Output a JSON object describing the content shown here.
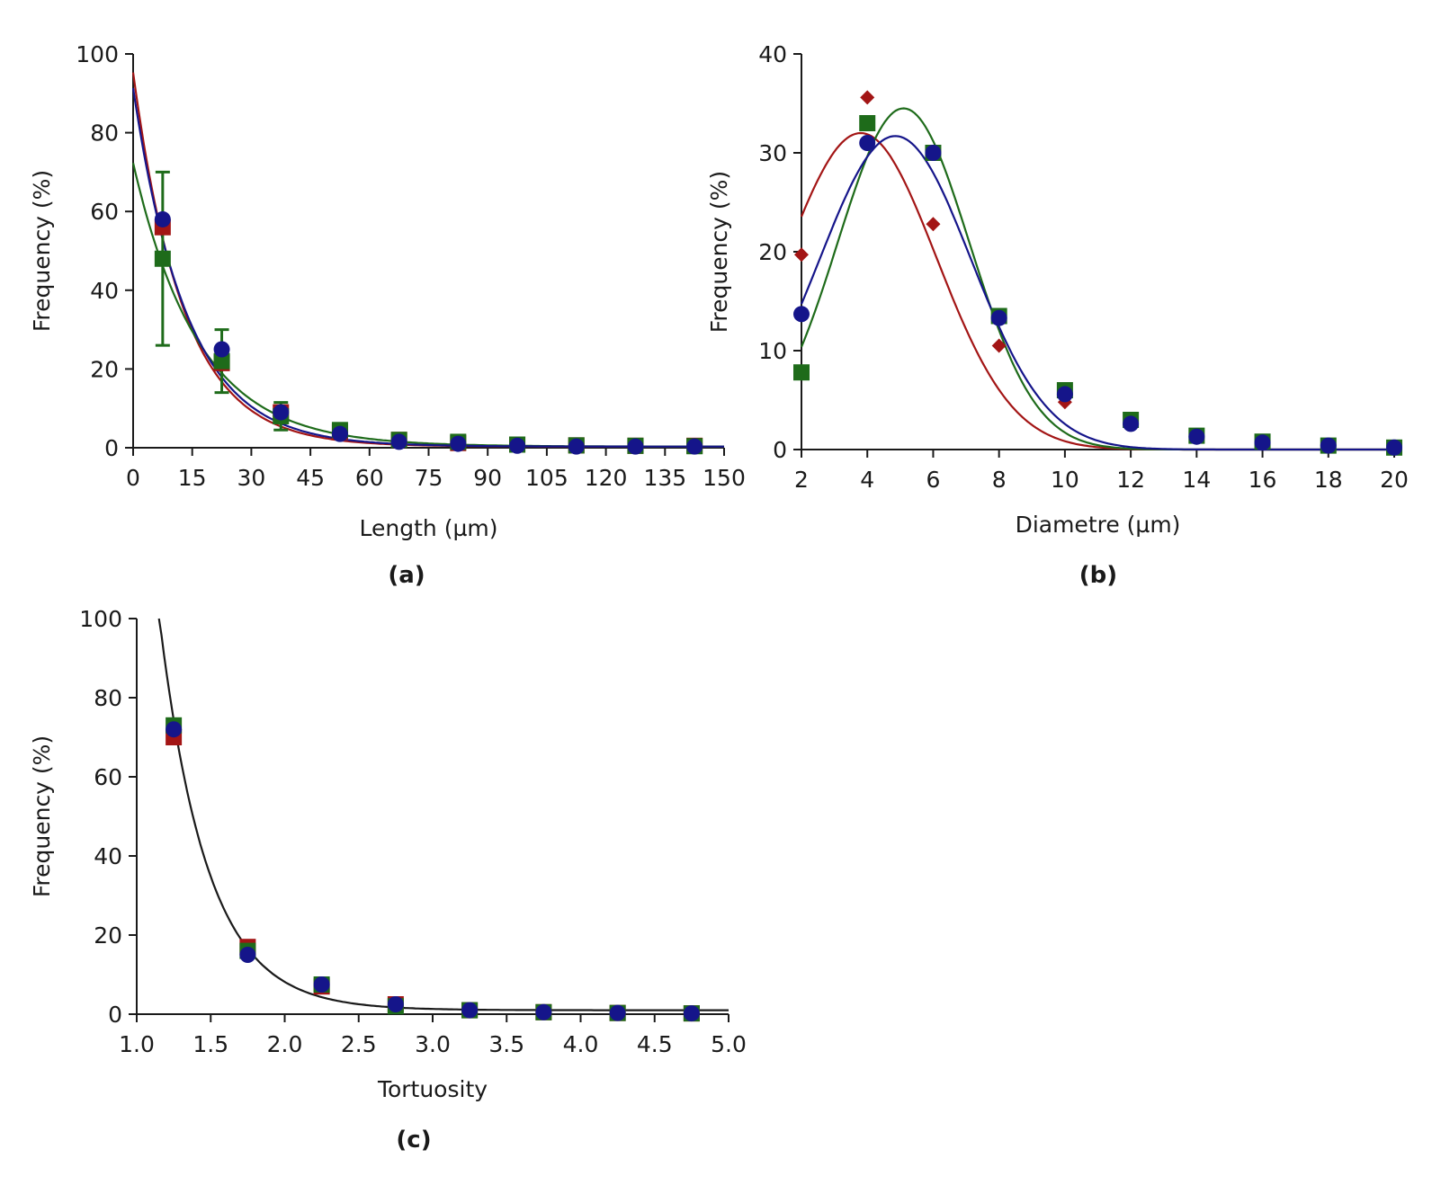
{
  "colors": {
    "red": "#a31515",
    "green": "#1e6b1a",
    "blue": "#15158a",
    "black": "#1a1a1a"
  },
  "chart_data": [
    {
      "panel": "(a)",
      "type": "scatter",
      "xlabel": "Length (µm)",
      "ylabel": "Frequency (%)",
      "xlim": [
        0,
        150
      ],
      "ylim": [
        0,
        100
      ],
      "xticks": [
        "0",
        "15",
        "30",
        "45",
        "60",
        "75",
        "90",
        "105",
        "120",
        "135",
        "150"
      ],
      "yticks": [
        "0",
        "20",
        "40",
        "60",
        "80",
        "100"
      ],
      "x": [
        7.5,
        22.5,
        37.5,
        52.5,
        67.5,
        82.5,
        97.5,
        112.5,
        127.5,
        142.5
      ],
      "series": [
        {
          "name": "red",
          "marker": "square",
          "color": "red",
          "values": [
            56,
            21.5,
            9,
            4,
            2,
            1.2,
            0.8,
            0.6,
            0.5,
            0.5
          ],
          "fit": {
            "model": "exp",
            "a": 95,
            "k": 0.078,
            "c": 0.3
          }
        },
        {
          "name": "green",
          "marker": "square",
          "color": "green",
          "values": [
            48,
            22,
            8,
            4.5,
            2,
            1.5,
            0.8,
            0.6,
            0.5,
            0.4
          ],
          "errors": [
            22,
            8,
            3.5,
            0,
            0,
            0,
            0,
            0,
            0,
            0
          ],
          "fit": {
            "model": "exp",
            "a": 72,
            "k": 0.06,
            "c": 0.3
          }
        },
        {
          "name": "blue",
          "marker": "circle",
          "color": "blue",
          "values": [
            58,
            25,
            9,
            3.5,
            1.5,
            1,
            0.5,
            0.3,
            0.3,
            0.3
          ],
          "fit": {
            "model": "exp",
            "a": 91,
            "k": 0.073,
            "c": 0.3
          }
        }
      ]
    },
    {
      "panel": "(b)",
      "type": "scatter",
      "xlabel": "Diametre (µm)",
      "ylabel": "Frequency (%)",
      "xlim": [
        2,
        20
      ],
      "ylim": [
        0,
        40
      ],
      "xticks": [
        "2",
        "4",
        "6",
        "8",
        "10",
        "12",
        "14",
        "16",
        "18",
        "20"
      ],
      "yticks": [
        "0",
        "10",
        "20",
        "30",
        "40"
      ],
      "x": [
        2,
        4,
        6,
        8,
        10,
        12,
        14,
        16,
        18,
        20
      ],
      "series": [
        {
          "name": "red",
          "marker": "diamond",
          "color": "red",
          "values": [
            19.7,
            35.6,
            22.8,
            10.5,
            4.8,
            2.5,
            1.2,
            0.7,
            0.4,
            0.2
          ],
          "fit": {
            "model": "gauss",
            "a": 32,
            "mu": 3.8,
            "sigma": 2.3
          }
        },
        {
          "name": "green",
          "marker": "square",
          "color": "green",
          "values": [
            7.8,
            33,
            30,
            13.5,
            6,
            3,
            1.4,
            0.8,
            0.4,
            0.2
          ],
          "fit": {
            "model": "gauss",
            "a": 34.5,
            "mu": 5.1,
            "sigma": 2.0
          }
        },
        {
          "name": "blue",
          "marker": "circle",
          "color": "blue",
          "values": [
            13.7,
            31,
            30,
            13.3,
            5.6,
            2.6,
            1.3,
            0.7,
            0.4,
            0.2
          ],
          "fit": {
            "model": "gauss",
            "a": 31.7,
            "mu": 4.85,
            "sigma": 2.3
          }
        }
      ]
    },
    {
      "panel": "(c)",
      "type": "scatter",
      "xlabel": "Tortuosity",
      "ylabel": "Frequency (%)",
      "xlim": [
        1.0,
        5.0
      ],
      "ylim": [
        0,
        100
      ],
      "xticks": [
        "1.0",
        "1.5",
        "2.0",
        "2.5",
        "3.0",
        "3.5",
        "4.0",
        "4.5",
        "5.0"
      ],
      "yticks": [
        "0",
        "20",
        "40",
        "60",
        "80",
        "100"
      ],
      "x": [
        1.25,
        1.75,
        2.25,
        2.75,
        3.25,
        3.75,
        4.25,
        4.75
      ],
      "series": [
        {
          "name": "red",
          "marker": "square",
          "color": "red",
          "values": [
            70,
            17,
            7,
            2.5,
            1,
            0.5,
            0.3,
            0.2
          ]
        },
        {
          "name": "green",
          "marker": "square",
          "color": "green",
          "values": [
            73,
            16,
            7.5,
            2,
            1,
            0.5,
            0.3,
            0.2
          ]
        },
        {
          "name": "blue",
          "marker": "circle",
          "color": "blue",
          "values": [
            72,
            15,
            7.5,
            2.5,
            1,
            0.5,
            0.3,
            0.2
          ]
        }
      ],
      "fit": {
        "model": "exp",
        "a": 100,
        "k": 3.1,
        "x0": 1.15,
        "c": 1,
        "color": "black"
      }
    }
  ]
}
